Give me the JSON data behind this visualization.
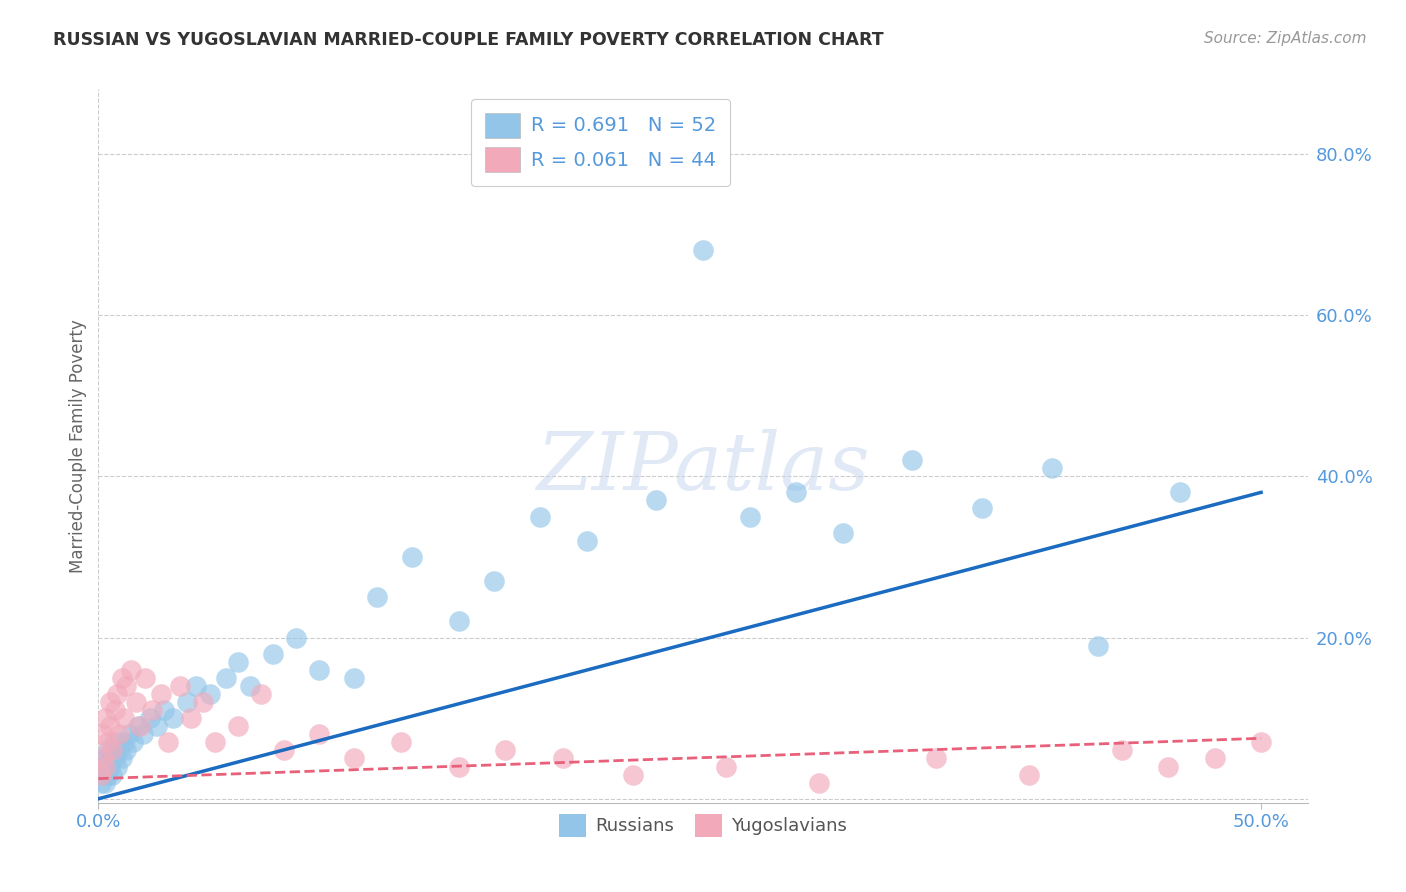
{
  "title": "RUSSIAN VS YUGOSLAVIAN MARRIED-COUPLE FAMILY POVERTY CORRELATION CHART",
  "source": "Source: ZipAtlas.com",
  "ylabel": "Married-Couple Family Poverty",
  "xlim": [
    0.0,
    0.52
  ],
  "ylim": [
    -0.005,
    0.88
  ],
  "ytick_positions": [
    0.0,
    0.2,
    0.4,
    0.6,
    0.8
  ],
  "ytick_labels": [
    "",
    "20.0%",
    "40.0%",
    "60.0%",
    "80.0%"
  ],
  "xtick_positions": [
    0.0,
    0.5
  ],
  "xtick_labels": [
    "0.0%",
    "50.0%"
  ],
  "russian_color": "#92C5E8",
  "yugoslavian_color": "#F2AABB",
  "russian_line_color": "#1B6BC0",
  "yugoslavian_line_color": "#E8607A",
  "background_color": "#FFFFFF",
  "grid_color": "#CCCCCC",
  "title_color": "#333333",
  "axis_label_color": "#666666",
  "tick_color": "#5599DD",
  "watermark_text": "ZIPatlas",
  "legend_labels": [
    "R = 0.691   N = 52",
    "R = 0.061   N = 44"
  ],
  "bottom_legend_labels": [
    "Russians",
    "Yugoslavians"
  ],
  "russians_x": [
    0.001,
    0.002,
    0.002,
    0.003,
    0.003,
    0.004,
    0.004,
    0.005,
    0.005,
    0.006,
    0.006,
    0.007,
    0.007,
    0.008,
    0.009,
    0.01,
    0.011,
    0.012,
    0.013,
    0.015,
    0.017,
    0.019,
    0.022,
    0.025,
    0.028,
    0.032,
    0.038,
    0.042,
    0.048,
    0.055,
    0.06,
    0.065,
    0.075,
    0.085,
    0.095,
    0.11,
    0.12,
    0.135,
    0.155,
    0.17,
    0.19,
    0.21,
    0.24,
    0.26,
    0.28,
    0.3,
    0.32,
    0.35,
    0.38,
    0.41,
    0.43,
    0.465
  ],
  "russians_y": [
    0.02,
    0.03,
    0.04,
    0.02,
    0.05,
    0.03,
    0.06,
    0.04,
    0.05,
    0.03,
    0.06,
    0.05,
    0.07,
    0.04,
    0.06,
    0.05,
    0.07,
    0.06,
    0.08,
    0.07,
    0.09,
    0.08,
    0.1,
    0.09,
    0.11,
    0.1,
    0.12,
    0.14,
    0.13,
    0.15,
    0.17,
    0.14,
    0.18,
    0.2,
    0.16,
    0.15,
    0.25,
    0.3,
    0.22,
    0.27,
    0.35,
    0.32,
    0.37,
    0.68,
    0.35,
    0.38,
    0.33,
    0.42,
    0.36,
    0.41,
    0.19,
    0.38
  ],
  "yugoslavians_x": [
    0.001,
    0.002,
    0.002,
    0.003,
    0.003,
    0.004,
    0.005,
    0.005,
    0.006,
    0.007,
    0.008,
    0.009,
    0.01,
    0.011,
    0.012,
    0.014,
    0.016,
    0.018,
    0.02,
    0.023,
    0.027,
    0.03,
    0.035,
    0.04,
    0.045,
    0.05,
    0.06,
    0.07,
    0.08,
    0.095,
    0.11,
    0.13,
    0.155,
    0.175,
    0.2,
    0.23,
    0.27,
    0.31,
    0.36,
    0.4,
    0.44,
    0.46,
    0.48,
    0.5
  ],
  "yugoslavians_y": [
    0.03,
    0.05,
    0.08,
    0.04,
    0.1,
    0.07,
    0.09,
    0.12,
    0.06,
    0.11,
    0.13,
    0.08,
    0.15,
    0.1,
    0.14,
    0.16,
    0.12,
    0.09,
    0.15,
    0.11,
    0.13,
    0.07,
    0.14,
    0.1,
    0.12,
    0.07,
    0.09,
    0.13,
    0.06,
    0.08,
    0.05,
    0.07,
    0.04,
    0.06,
    0.05,
    0.03,
    0.04,
    0.02,
    0.05,
    0.03,
    0.06,
    0.04,
    0.05,
    0.07
  ],
  "russian_line_x": [
    0.0,
    0.5
  ],
  "russian_line_y": [
    0.0,
    0.38
  ],
  "yugoslav_line_x": [
    0.0,
    0.5
  ],
  "yugoslav_line_y": [
    0.025,
    0.075
  ]
}
